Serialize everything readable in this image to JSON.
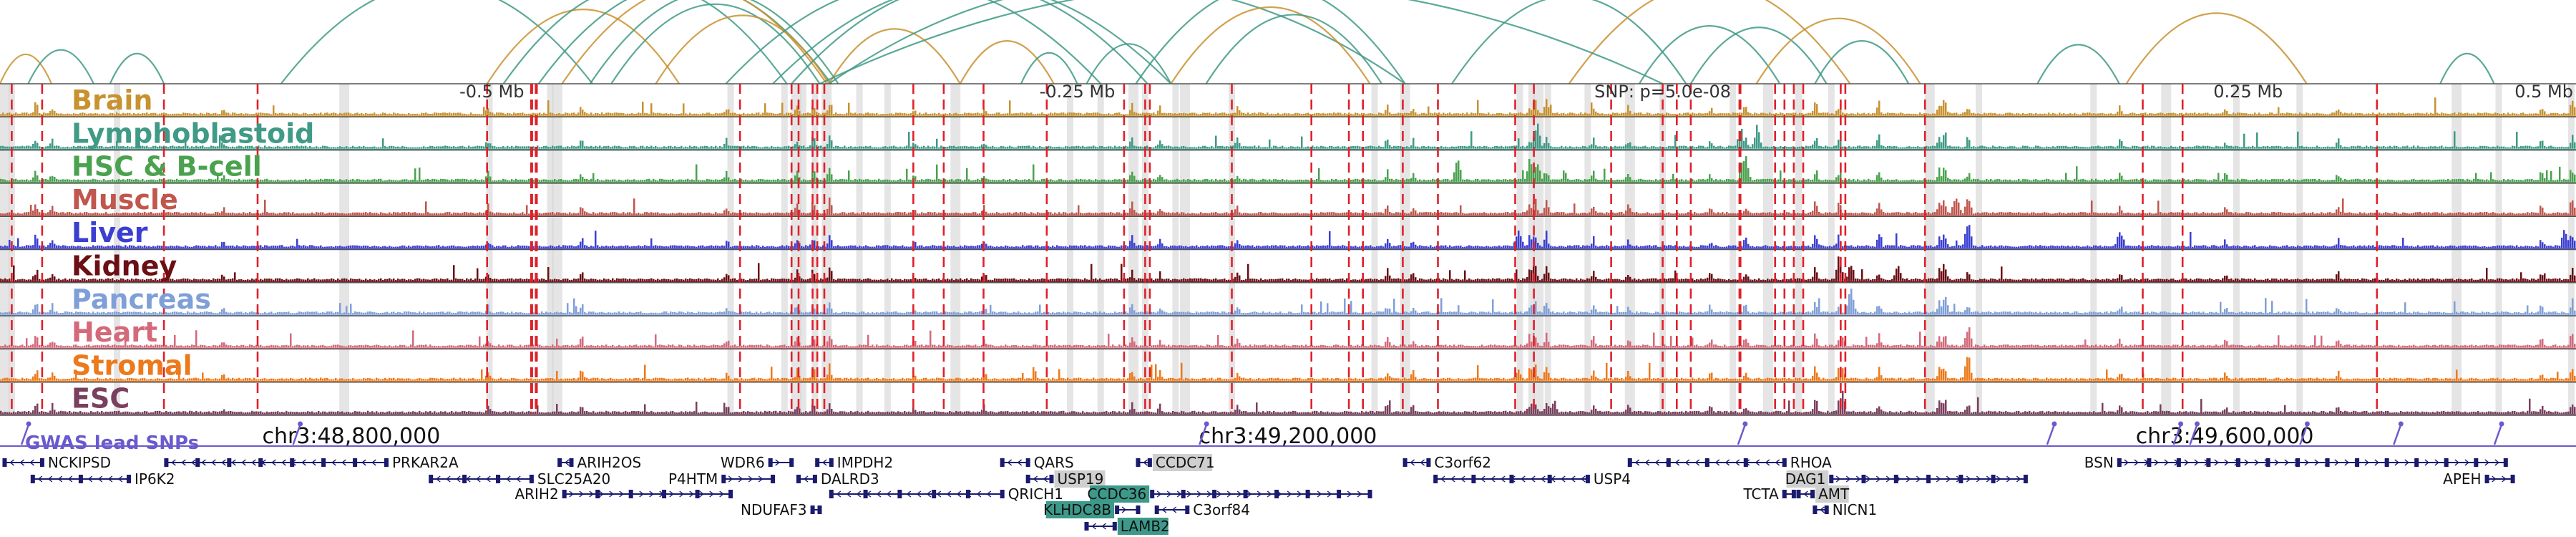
{
  "chart_data": {
    "type": "genome-browser",
    "region": {
      "chrom": "chr3",
      "start": 48650000,
      "end": 49750000
    },
    "relative_ticks": [
      {
        "pos": 48860000,
        "label": "-0.5 Mb"
      },
      {
        "pos": 49110000,
        "label": "-0.25 Mb"
      },
      {
        "pos": 49360000,
        "label": "SNP: p=5.0e-08"
      },
      {
        "pos": 49610000,
        "label": "0.25 Mb"
      },
      {
        "pos": 49860000,
        "label": "0.5 Mb"
      }
    ],
    "tracks": [
      {
        "name": "Brain",
        "color": "#c8922f"
      },
      {
        "name": "Lymphoblastoid",
        "color": "#3f9a86"
      },
      {
        "name": "HSC & B-cell",
        "color": "#4aa24e"
      },
      {
        "name": "Muscle",
        "color": "#c0564c"
      },
      {
        "name": "Liver",
        "color": "#3b3fd1"
      },
      {
        "name": "Kidney",
        "color": "#6b0f14"
      },
      {
        "name": "Pancreas",
        "color": "#7f9fd8"
      },
      {
        "name": "Heart",
        "color": "#d4697a"
      },
      {
        "name": "Stromal",
        "color": "#ec7a1c"
      },
      {
        "name": "ESC",
        "color": "#7a3f5e"
      }
    ],
    "chrom_axis": {
      "ticks": [
        {
          "pos": 48800000,
          "label": "chr3:48,800,000"
        },
        {
          "pos": 49200000,
          "label": "chr3:49,200,000"
        },
        {
          "pos": 49600000,
          "label": "chr3:49,600,000"
        }
      ]
    },
    "gwas_track": {
      "label": "GWAS lead SNPs",
      "color": "#6a5acd",
      "snps": [
        48661000,
        48777000,
        49164000,
        49394000,
        49526000,
        49580000,
        49587000,
        49634000,
        49674000,
        49717000
      ]
    },
    "genes": [
      {
        "name": "NCKIPSD",
        "start": 48652000,
        "end": 48668000,
        "row": 0,
        "strand": "-",
        "highlight": false
      },
      {
        "name": "IP6K2",
        "start": 48664000,
        "end": 48705000,
        "row": 1,
        "strand": "-",
        "highlight": false
      },
      {
        "name": "PRKAR2A",
        "start": 48721000,
        "end": 48815000,
        "row": 0,
        "strand": "-",
        "highlight": false
      },
      {
        "name": "SLC25A20",
        "start": 48834000,
        "end": 48877000,
        "row": 1,
        "strand": "-",
        "highlight": false
      },
      {
        "name": "ARIH2OS",
        "start": 48889000,
        "end": 48894000,
        "row": 0,
        "strand": "-",
        "highlight": false
      },
      {
        "name": "ARIH2",
        "start": 48891000,
        "end": 48962000,
        "row": 2,
        "strand": "+",
        "highlight": false
      },
      {
        "name": "P4HTM",
        "start": 48959000,
        "end": 48980000,
        "row": 1,
        "strand": "+",
        "highlight": false
      },
      {
        "name": "WDR6",
        "start": 48979000,
        "end": 48988000,
        "row": 0,
        "strand": "+",
        "highlight": false
      },
      {
        "name": "DALRD3",
        "start": 48991000,
        "end": 48998000,
        "row": 1,
        "strand": "-",
        "highlight": false
      },
      {
        "name": "NDUFAF3",
        "start": 48997000,
        "end": 49000000,
        "row": 3,
        "strand": "+",
        "highlight": false
      },
      {
        "name": "IMPDH2",
        "start": 48999000,
        "end": 49005000,
        "row": 0,
        "strand": "-",
        "highlight": false
      },
      {
        "name": "QRICH1",
        "start": 49005000,
        "end": 49078000,
        "row": 2,
        "strand": "-",
        "highlight": false
      },
      {
        "name": "QARS",
        "start": 49078000,
        "end": 49089000,
        "row": 0,
        "strand": "-",
        "highlight": false
      },
      {
        "name": "USP19",
        "start": 49089000,
        "end": 49099000,
        "row": 1,
        "strand": "-",
        "highlight": true
      },
      {
        "name": "LAMB2",
        "start": 49114000,
        "end": 49126000,
        "row": 4,
        "strand": "-",
        "highlight": true
      },
      {
        "name": "KLHDC8B",
        "start": 49127000,
        "end": 49136000,
        "row": 3,
        "strand": "+",
        "highlight": true
      },
      {
        "name": "CCDC71",
        "start": 49136000,
        "end": 49141000,
        "row": 0,
        "strand": "-",
        "highlight": true
      },
      {
        "name": "CCDC36",
        "start": 49142000,
        "end": 49235000,
        "row": 2,
        "strand": "+",
        "highlight": true
      },
      {
        "name": "C3orf84",
        "start": 49144000,
        "end": 49157000,
        "row": 3,
        "strand": "-",
        "highlight": false
      },
      {
        "name": "C3orf62",
        "start": 49250000,
        "end": 49260000,
        "row": 0,
        "strand": "-",
        "highlight": false
      },
      {
        "name": "USP4",
        "start": 49263000,
        "end": 49328000,
        "row": 1,
        "strand": "-",
        "highlight": false
      },
      {
        "name": "RHOA",
        "start": 49346000,
        "end": 49412000,
        "row": 0,
        "strand": "-",
        "highlight": false
      },
      {
        "name": "TCTA",
        "start": 49412000,
        "end": 49416000,
        "row": 2,
        "strand": "+",
        "highlight": false
      },
      {
        "name": "AMT",
        "start": 49418000,
        "end": 49424000,
        "row": 2,
        "strand": "-",
        "highlight": true
      },
      {
        "name": "NICN1",
        "start": 49425000,
        "end": 49430000,
        "row": 3,
        "strand": "-",
        "highlight": false
      },
      {
        "name": "DAG1",
        "start": 49432000,
        "end": 49515000,
        "row": 1,
        "strand": "+",
        "highlight": true
      },
      {
        "name": "BSN",
        "start": 49555000,
        "end": 49720000,
        "row": 0,
        "strand": "+",
        "highlight": false
      },
      {
        "name": "APEH",
        "start": 49712000,
        "end": 49723000,
        "row": 1,
        "strand": "+",
        "highlight": false
      }
    ]
  }
}
